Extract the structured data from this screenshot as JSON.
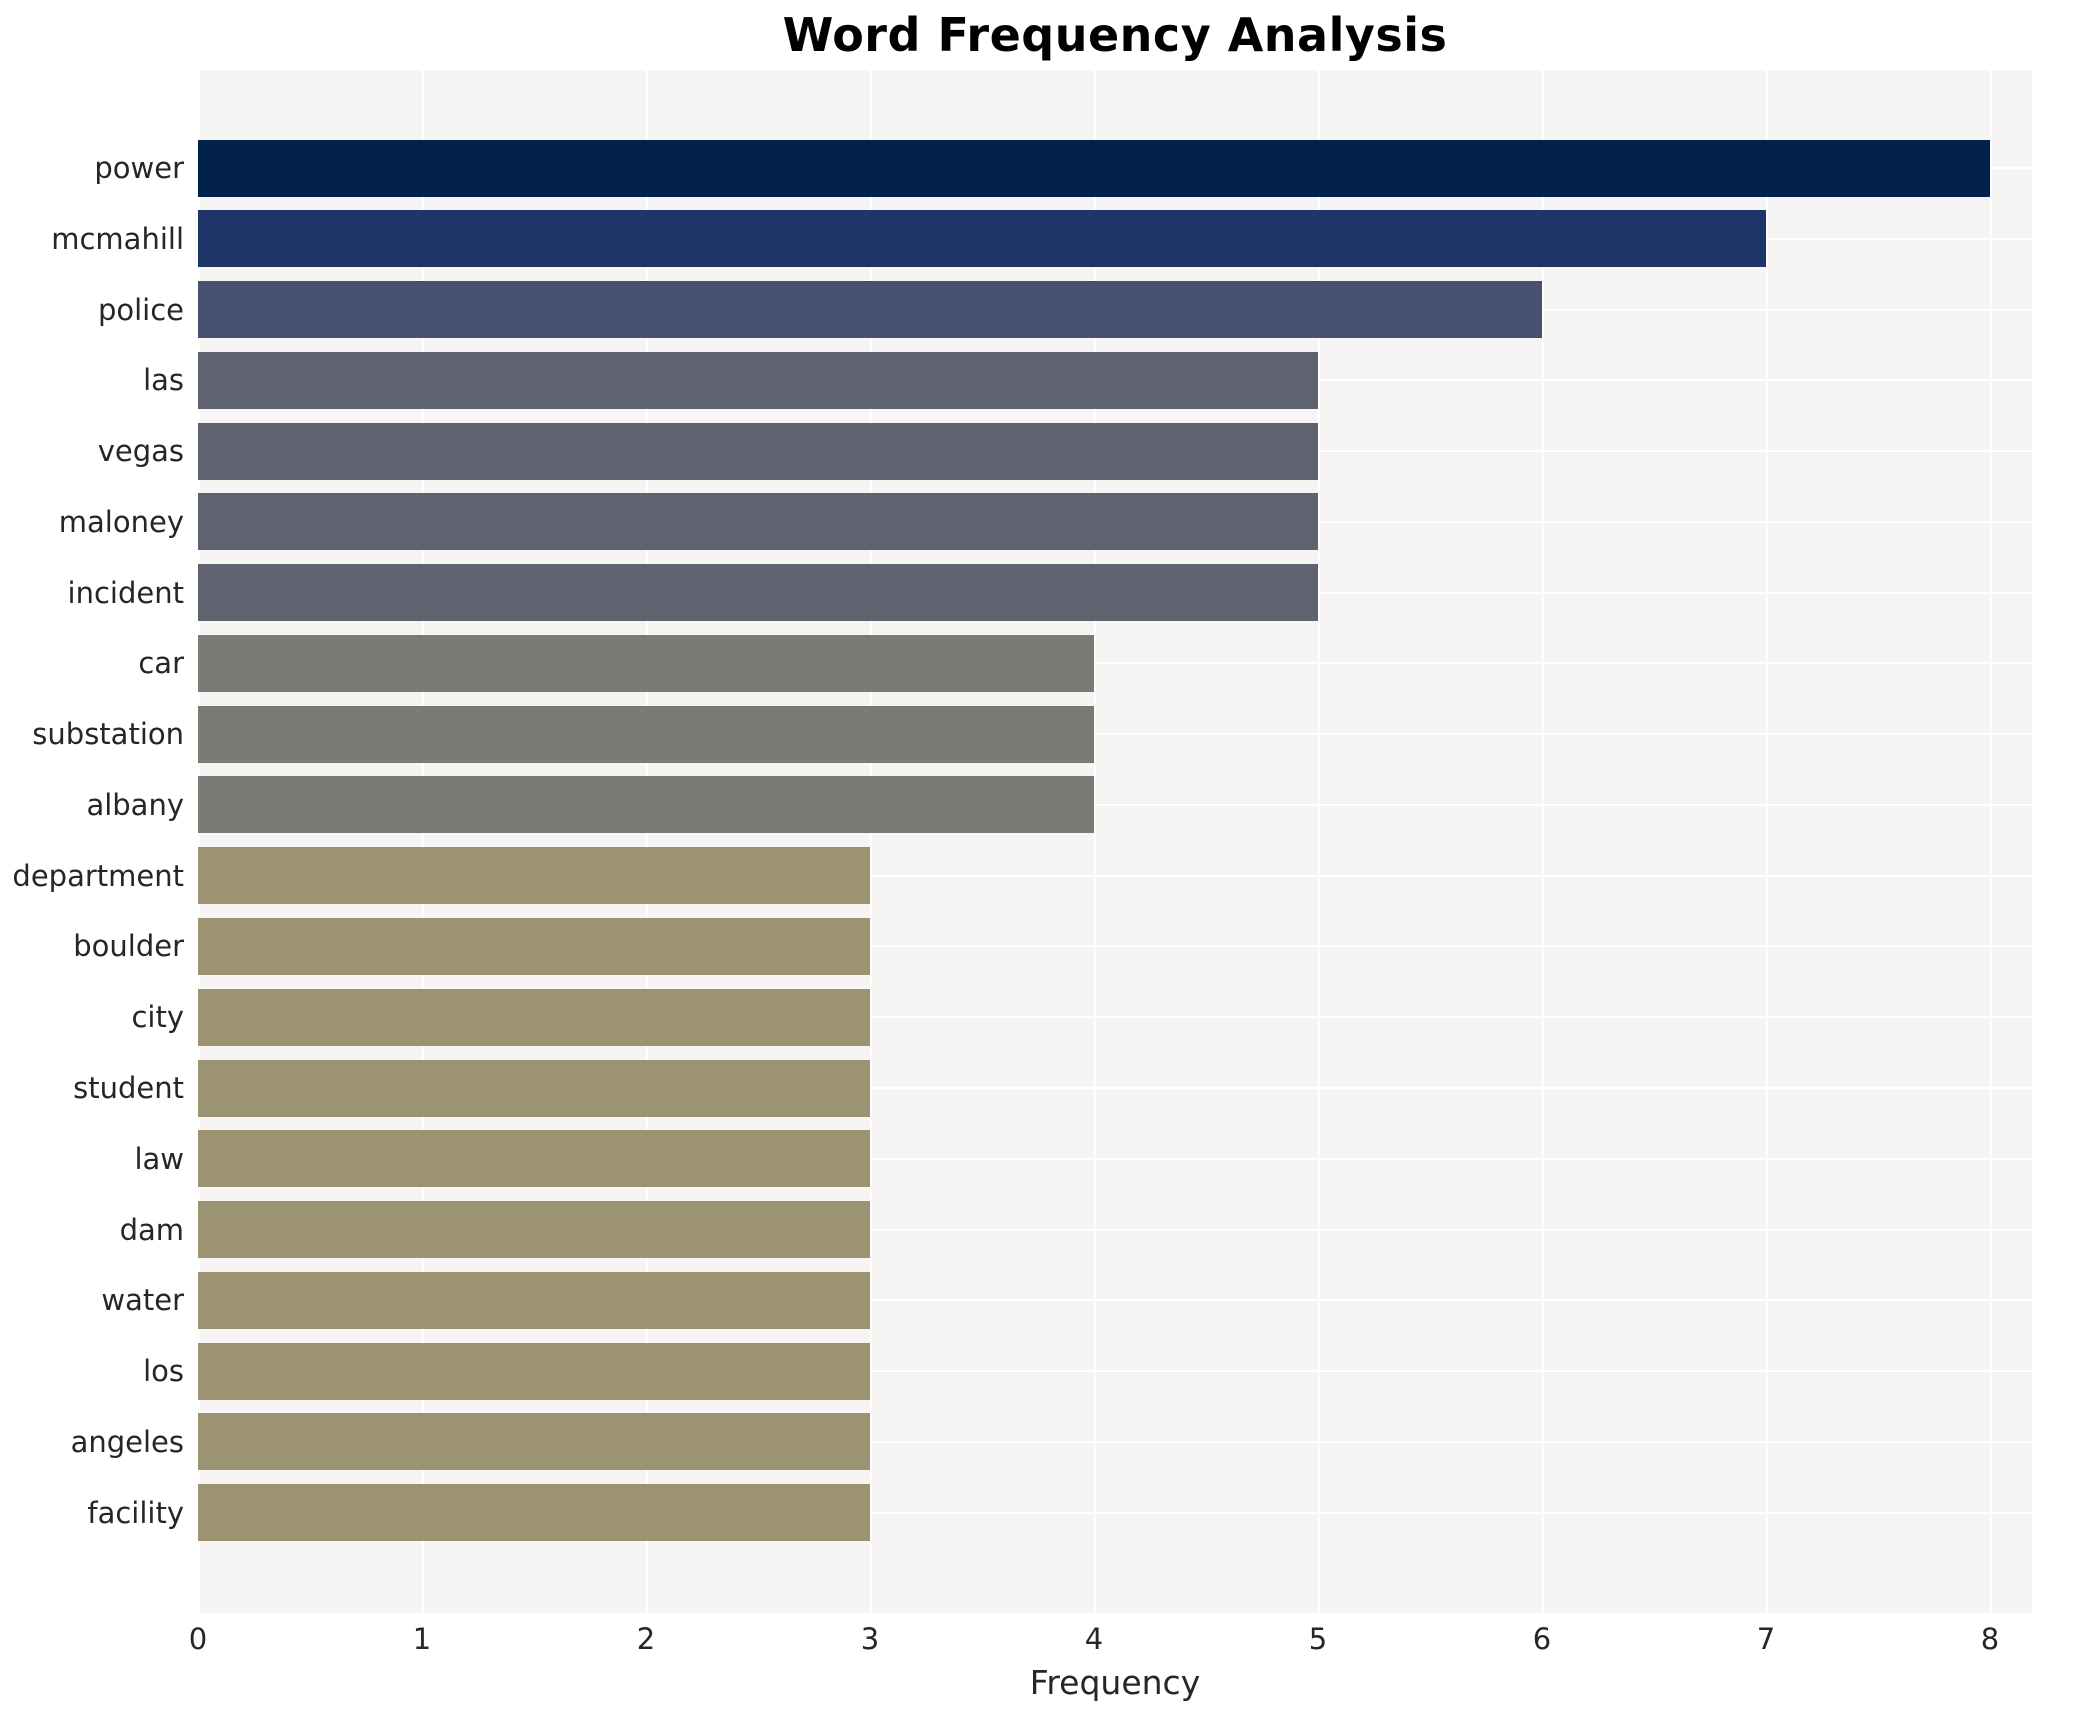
{
  "chart_data": {
    "type": "bar",
    "orientation": "horizontal",
    "title": "Word Frequency Analysis",
    "xlabel": "Frequency",
    "ylabel": "",
    "categories": [
      "power",
      "mcmahill",
      "police",
      "las",
      "vegas",
      "maloney",
      "incident",
      "car",
      "substation",
      "albany",
      "department",
      "boulder",
      "city",
      "student",
      "law",
      "dam",
      "water",
      "los",
      "angeles",
      "facility"
    ],
    "values": [
      8,
      7,
      6,
      5,
      5,
      5,
      5,
      4,
      4,
      4,
      3,
      3,
      3,
      3,
      3,
      3,
      3,
      3,
      3,
      3
    ],
    "bar_colors": [
      "#03214d",
      "#1d3569",
      "#475071",
      "#5f636f",
      "#5f636f",
      "#5f636f",
      "#5f636f",
      "#7a7b75",
      "#7a7b75",
      "#7a7b75",
      "#9b9371",
      "#9b9371",
      "#9b9371",
      "#9b9371",
      "#9b9371",
      "#9b9371",
      "#9b9371",
      "#9b9371",
      "#9b9371",
      "#9b9371"
    ],
    "xticks": [
      "0",
      "1",
      "2",
      "3",
      "4",
      "5",
      "6",
      "7",
      "8"
    ],
    "xlim": [
      0,
      8.19
    ],
    "grid": true,
    "grid_color": "#ffffff",
    "plot_background": "#f6f5f4",
    "text_color": "#262626",
    "legend": false
  }
}
